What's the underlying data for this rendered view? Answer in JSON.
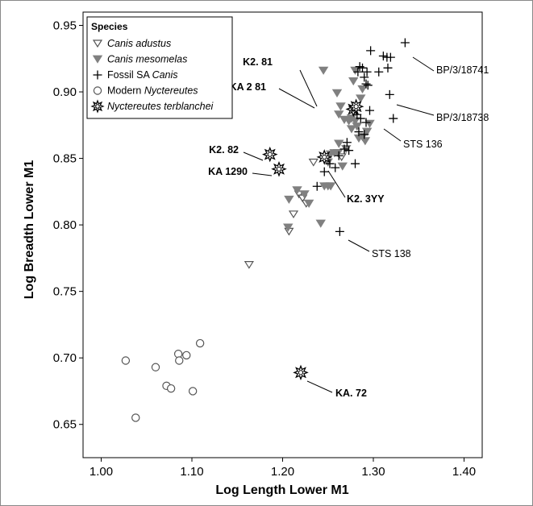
{
  "chart_data": {
    "type": "scatter",
    "xlabel": "Log Length Lower M1",
    "ylabel": "Log Breadth Lower M1",
    "xlim": [
      0.98,
      1.42
    ],
    "ylim": [
      0.625,
      0.96
    ],
    "x_ticks": [
      1.0,
      1.1,
      1.2,
      1.3,
      1.4
    ],
    "x_tick_labels": [
      "1.00",
      "1.10",
      "1.20",
      "1.30",
      "1.40"
    ],
    "y_ticks": [
      0.65,
      0.7,
      0.75,
      0.8,
      0.85,
      0.9,
      0.95
    ],
    "y_tick_labels": [
      "0.65",
      "0.70",
      "0.75",
      "0.80",
      "0.85",
      "0.90",
      "0.95"
    ],
    "grid": false,
    "legend": {
      "title": "Species",
      "placement": "top-left",
      "entries": [
        {
          "series": 0,
          "parts": [
            {
              "text": "Canis adustus",
              "italic": true
            }
          ]
        },
        {
          "series": 1,
          "parts": [
            {
              "text": "Canis mesomelas",
              "italic": true
            }
          ]
        },
        {
          "series": 2,
          "parts": [
            {
              "text": "Fossil SA ",
              "italic": false
            },
            {
              "text": "Canis",
              "italic": true
            }
          ]
        },
        {
          "series": 3,
          "parts": [
            {
              "text": "Modern ",
              "italic": false
            },
            {
              "text": "Nyctereutes",
              "italic": true
            }
          ]
        },
        {
          "series": 4,
          "parts": [
            {
              "text": "Nyctereutes terblanchei",
              "italic": true
            }
          ]
        }
      ]
    },
    "series": [
      {
        "name": "Canis adustus",
        "marker": "triangle-down-open",
        "color": "#555555",
        "points": [
          [
            1.163,
            0.77
          ],
          [
            1.207,
            0.795
          ],
          [
            1.212,
            0.808
          ],
          [
            1.218,
            0.823
          ],
          [
            1.222,
            0.82
          ],
          [
            1.226,
            0.816
          ],
          [
            1.234,
            0.847
          ],
          [
            1.265,
            0.851
          ]
        ]
      },
      {
        "name": "Canis mesomelas",
        "marker": "triangle-down-filled",
        "color": "#808080",
        "points": [
          [
            1.206,
            0.798
          ],
          [
            1.207,
            0.819
          ],
          [
            1.216,
            0.826
          ],
          [
            1.224,
            0.823
          ],
          [
            1.229,
            0.816
          ],
          [
            1.242,
            0.801
          ],
          [
            1.246,
            0.829
          ],
          [
            1.25,
            0.829
          ],
          [
            1.253,
            0.829
          ],
          [
            1.25,
            0.847
          ],
          [
            1.253,
            0.853
          ],
          [
            1.257,
            0.854
          ],
          [
            1.261,
            0.854
          ],
          [
            1.262,
            0.861
          ],
          [
            1.266,
            0.844
          ],
          [
            1.27,
            0.857
          ],
          [
            1.273,
            0.878
          ],
          [
            1.276,
            0.872
          ],
          [
            1.28,
            0.878
          ],
          [
            1.282,
            0.874
          ],
          [
            1.284,
            0.865
          ],
          [
            1.288,
            0.866
          ],
          [
            1.291,
            0.863
          ],
          [
            1.293,
            0.87
          ],
          [
            1.296,
            0.876
          ],
          [
            1.26,
            0.899
          ],
          [
            1.262,
            0.883
          ],
          [
            1.264,
            0.889
          ],
          [
            1.268,
            0.879
          ],
          [
            1.276,
            0.88
          ],
          [
            1.278,
            0.908
          ],
          [
            1.28,
            0.916
          ],
          [
            1.286,
            0.895
          ],
          [
            1.288,
            0.902
          ],
          [
            1.245,
            0.916
          ]
        ]
      },
      {
        "name": "Fossil SA Canis",
        "marker": "plus",
        "color": "#000000",
        "points": [
          [
            1.263,
            0.795
          ],
          [
            1.238,
            0.829
          ],
          [
            1.246,
            0.84
          ],
          [
            1.252,
            0.846
          ],
          [
            1.258,
            0.843
          ],
          [
            1.262,
            0.852
          ],
          [
            1.268,
            0.857
          ],
          [
            1.271,
            0.862
          ],
          [
            1.273,
            0.856
          ],
          [
            1.28,
            0.846
          ],
          [
            1.284,
            0.87
          ],
          [
            1.286,
            0.88
          ],
          [
            1.29,
            0.868
          ],
          [
            1.292,
            0.877
          ],
          [
            1.296,
            0.886
          ],
          [
            1.283,
            0.915
          ],
          [
            1.285,
            0.919
          ],
          [
            1.288,
            0.918
          ],
          [
            1.29,
            0.911
          ],
          [
            1.292,
            0.906
          ],
          [
            1.294,
            0.905
          ],
          [
            1.293,
            0.915
          ],
          [
            1.297,
            0.931
          ],
          [
            1.306,
            0.915
          ],
          [
            1.311,
            0.927
          ],
          [
            1.315,
            0.926
          ],
          [
            1.319,
            0.926
          ],
          [
            1.316,
            0.918
          ],
          [
            1.322,
            0.88
          ],
          [
            1.318,
            0.898
          ],
          [
            1.335,
            0.937
          ],
          [
            1.282,
            0.883
          ]
        ]
      },
      {
        "name": "Modern Nyctereutes",
        "marker": "circle-open",
        "color": "#555555",
        "points": [
          [
            1.027,
            0.698
          ],
          [
            1.038,
            0.655
          ],
          [
            1.06,
            0.693
          ],
          [
            1.072,
            0.679
          ],
          [
            1.077,
            0.677
          ],
          [
            1.085,
            0.703
          ],
          [
            1.086,
            0.698
          ],
          [
            1.094,
            0.702
          ],
          [
            1.101,
            0.675
          ],
          [
            1.109,
            0.711
          ]
        ]
      },
      {
        "name": "Nyctereutes terblanchei",
        "marker": "star-burst",
        "color": "#000000",
        "points": [
          [
            1.186,
            0.853
          ],
          [
            1.196,
            0.842
          ],
          [
            1.22,
            0.689
          ],
          [
            1.246,
            0.851
          ],
          [
            1.278,
            0.887
          ],
          [
            1.281,
            0.889
          ]
        ]
      }
    ],
    "annotations": [
      {
        "text": "K2. 81",
        "bold": true,
        "target": [
          1.281,
          0.889
        ]
      },
      {
        "text": "KA 2 81",
        "bold": true,
        "target": [
          1.278,
          0.887
        ]
      },
      {
        "text": "K2. 82",
        "bold": true,
        "target": [
          1.186,
          0.853
        ]
      },
      {
        "text": "KA 1290",
        "bold": true,
        "target": [
          1.196,
          0.842
        ]
      },
      {
        "text": "K2. 3YY",
        "bold": true,
        "target": [
          1.246,
          0.851
        ]
      },
      {
        "text": "KA. 72",
        "bold": true,
        "target": [
          1.22,
          0.689
        ]
      },
      {
        "text": "BP/3/18741",
        "bold": false,
        "target": [
          1.335,
          0.937
        ]
      },
      {
        "text": "BP/3/18738",
        "bold": false,
        "target": [
          1.318,
          0.898
        ]
      },
      {
        "text": "STS 136",
        "bold": false,
        "target": [
          1.322,
          0.88
        ]
      },
      {
        "text": "STS 138",
        "bold": false,
        "target": [
          1.263,
          0.795
        ]
      }
    ]
  }
}
